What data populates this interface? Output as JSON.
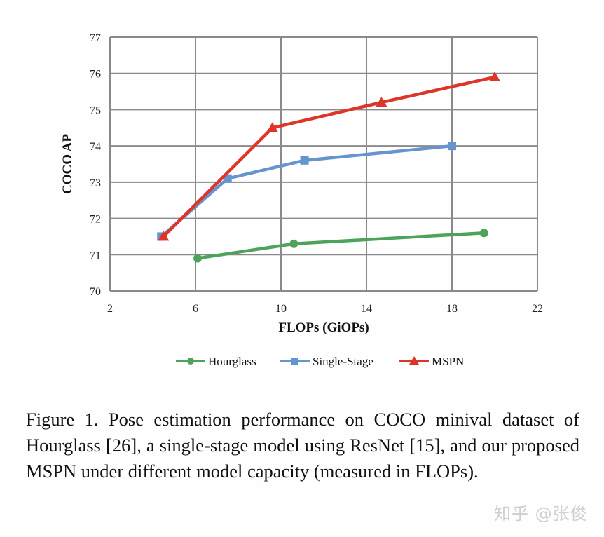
{
  "chart_data": {
    "type": "line",
    "title": "",
    "xlabel": "FLOPs (GiOPs)",
    "ylabel": "COCO AP",
    "xlim": [
      2,
      22
    ],
    "ylim": [
      70,
      77
    ],
    "xticks": [
      2,
      6,
      10,
      14,
      18,
      22
    ],
    "yticks": [
      70,
      71,
      72,
      73,
      74,
      75,
      76,
      77
    ],
    "grid": true,
    "legend_position": "bottom",
    "series": [
      {
        "name": "Hourglass",
        "color": "#4ea35a",
        "marker": "circle",
        "x": [
          6.1,
          10.6,
          19.5
        ],
        "y": [
          70.9,
          71.3,
          71.6
        ]
      },
      {
        "name": "Single-Stage",
        "color": "#6595cf",
        "marker": "square",
        "x": [
          4.4,
          7.5,
          11.1,
          18.0
        ],
        "y": [
          71.5,
          73.1,
          73.6,
          74.0
        ]
      },
      {
        "name": "MSPN",
        "color": "#dd3528",
        "marker": "triangle",
        "x": [
          4.5,
          9.6,
          14.7,
          20.0
        ],
        "y": [
          71.5,
          74.5,
          75.2,
          75.9
        ]
      }
    ]
  },
  "caption": "Figure 1. Pose estimation performance on COCO minival dataset of Hourglass [26], a single-stage model using ResNet [15], and our proposed MSPN under different model capacity (measured in FLOPs).",
  "watermark": "知乎 @张俊"
}
